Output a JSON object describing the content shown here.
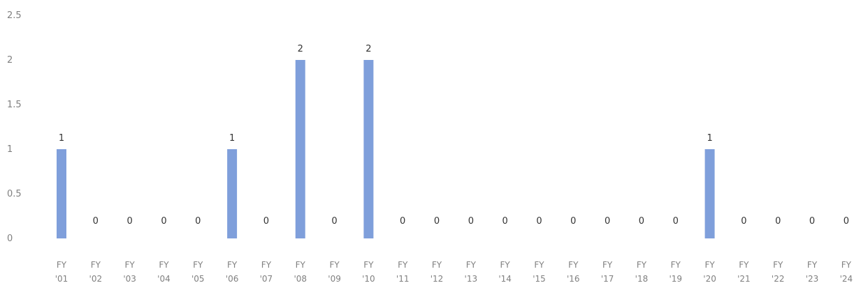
{
  "chart_data": {
    "type": "bar",
    "title": "",
    "xlabel": "",
    "ylabel": "",
    "categories": [
      [
        "FY",
        "'01"
      ],
      [
        "FY",
        "'02"
      ],
      [
        "FY",
        "'03"
      ],
      [
        "FY",
        "'04"
      ],
      [
        "FY",
        "'05"
      ],
      [
        "FY",
        "'06"
      ],
      [
        "FY",
        "'07"
      ],
      [
        "FY",
        "'08"
      ],
      [
        "FY",
        "'09"
      ],
      [
        "FY",
        "'10"
      ],
      [
        "FY",
        "'11"
      ],
      [
        "FY",
        "'12"
      ],
      [
        "FY",
        "'13"
      ],
      [
        "FY",
        "'14"
      ],
      [
        "FY",
        "'15"
      ],
      [
        "FY",
        "'16"
      ],
      [
        "FY",
        "'17"
      ],
      [
        "FY",
        "'18"
      ],
      [
        "FY",
        "'19"
      ],
      [
        "FY",
        "'20"
      ],
      [
        "FY",
        "'21"
      ],
      [
        "FY",
        "'22"
      ],
      [
        "FY",
        "'23"
      ],
      [
        "FY",
        "'24"
      ]
    ],
    "values": [
      1,
      0,
      0,
      0,
      0,
      1,
      0,
      2,
      0,
      2,
      0,
      0,
      0,
      0,
      0,
      0,
      0,
      0,
      0,
      1,
      0,
      0,
      0,
      0
    ],
    "ylim": [
      0,
      2.5
    ],
    "yticks": [
      "0",
      "0.5",
      "1",
      "1.5",
      "2",
      "2.5"
    ],
    "grid": false,
    "legend": "none",
    "data_labels": true,
    "bar_color": "#7f9fdb",
    "tick_color": "#808080",
    "label_color": "#333333"
  }
}
